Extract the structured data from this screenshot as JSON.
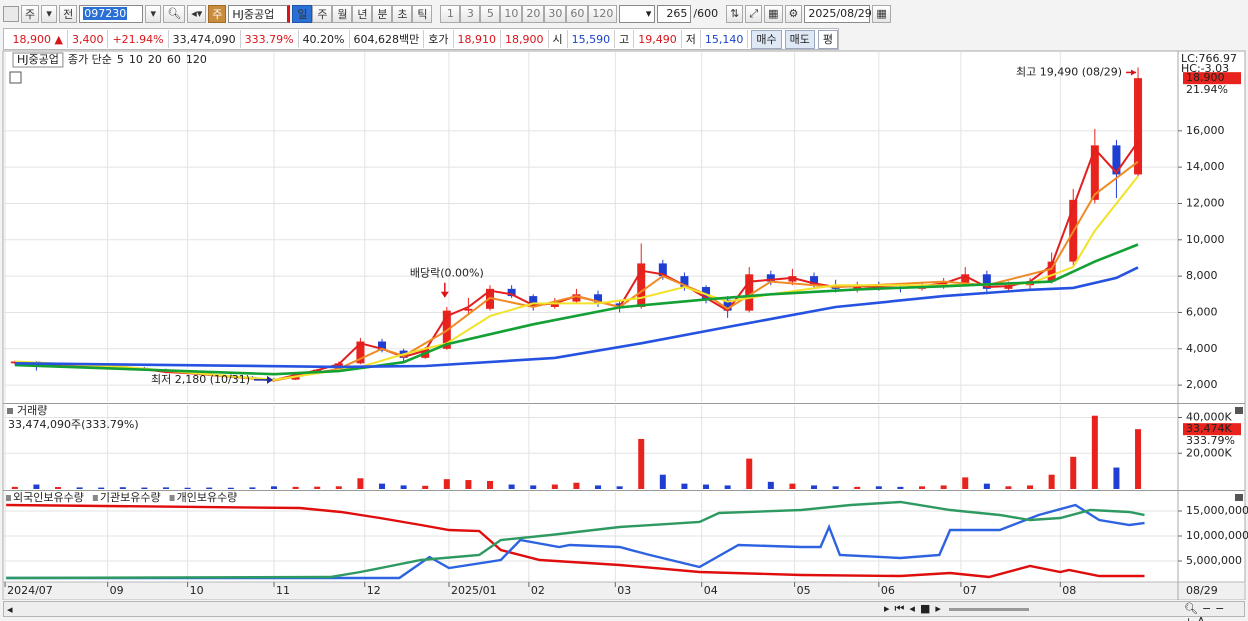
{
  "toolbar": {
    "market": "주",
    "prev": "전",
    "code": "097230",
    "name": "HJ중공업",
    "periods": [
      "일",
      "주",
      "월",
      "년",
      "분",
      "초",
      "틱"
    ],
    "intervals": [
      "1",
      "3",
      "5",
      "10",
      "20",
      "30",
      "60",
      "120"
    ],
    "count": "265",
    "max": "/600",
    "date": "2025/08/29"
  },
  "quote": {
    "price": "18,900 ▲",
    "change": "3,400",
    "rate": "+21.94%",
    "volume": "33,474,090",
    "vol_rate": "333.79%",
    "turnover": "40.20%",
    "cap": "604,628백만",
    "ask_label": "호가",
    "ask": "18,910",
    "bid": "18,900",
    "open_label": "시",
    "open": "15,590",
    "high_label": "고",
    "high": "19,490",
    "low_label": "저",
    "low": "15,140",
    "buy": "매수",
    "sell": "매도",
    "avg": "평"
  },
  "chart_data": [
    {
      "type": "candlestick",
      "title": "HJ중공업",
      "legend_label": "종가 단순",
      "x": [
        0,
        1,
        2,
        3,
        4,
        5,
        6,
        7,
        8,
        9,
        10,
        11,
        12,
        13,
        14,
        15,
        16,
        17,
        18,
        19,
        20,
        21,
        22,
        23,
        24,
        25,
        26,
        27,
        28,
        29,
        30,
        31,
        32,
        33,
        34,
        35,
        36,
        37,
        38,
        39,
        40,
        41,
        42,
        43,
        44,
        45,
        46,
        47,
        48,
        49,
        50,
        51,
        52
      ],
      "open": [
        3200,
        3300,
        3000,
        3100,
        3050,
        3000,
        2950,
        2850,
        2700,
        2650,
        2550,
        2450,
        2350,
        2300,
        2650,
        2850,
        3200,
        4400,
        3900,
        3500,
        4000,
        6100,
        6200,
        7300,
        6900,
        6300,
        6600,
        7000,
        6500,
        6300,
        8700,
        8000,
        7400,
        6700,
        6100,
        8100,
        7700,
        8000,
        7500,
        7300,
        7500,
        7400,
        7300,
        7500,
        7600,
        8100,
        7300,
        7500,
        7700,
        8800,
        12200,
        15200,
        13600
      ],
      "high": [
        3350,
        3320,
        3150,
        3150,
        3100,
        3050,
        3000,
        2900,
        2800,
        2700,
        2600,
        2500,
        2400,
        2700,
        2900,
        3300,
        4600,
        4550,
        4000,
        4100,
        6300,
        6800,
        7500,
        7500,
        7000,
        6800,
        7300,
        7200,
        6700,
        9800,
        8900,
        8200,
        7500,
        6900,
        8500,
        8300,
        8400,
        8200,
        7800,
        7700,
        7700,
        7600,
        7700,
        7900,
        8500,
        8300,
        7700,
        7900,
        9300,
        12800,
        16100,
        15500,
        19490
      ],
      "low": [
        3150,
        2800,
        2950,
        2980,
        2950,
        2900,
        2800,
        2650,
        2600,
        2500,
        2400,
        2300,
        2180,
        2280,
        2600,
        2800,
        3150,
        3800,
        3300,
        3450,
        3950,
        5900,
        6100,
        6800,
        6100,
        6200,
        6500,
        6300,
        6000,
        6200,
        7800,
        7200,
        6500,
        5700,
        6000,
        7500,
        7500,
        7300,
        7100,
        7100,
        7200,
        7100,
        7200,
        7300,
        7500,
        7000,
        7100,
        7300,
        7600,
        8600,
        12000,
        12300,
        13500
      ],
      "close": [
        3300,
        3000,
        3100,
        3050,
        3000,
        2950,
        2850,
        2700,
        2650,
        2550,
        2450,
        2350,
        2300,
        2650,
        2850,
        3200,
        4400,
        3900,
        3500,
        4000,
        6100,
        6200,
        7300,
        6900,
        6300,
        6600,
        7000,
        6500,
        6300,
        8700,
        8000,
        7400,
        6700,
        6100,
        8100,
        7700,
        8000,
        7500,
        7300,
        7500,
        7400,
        7300,
        7500,
        7600,
        8100,
        7300,
        7500,
        7700,
        8800,
        12200,
        15200,
        13600,
        18900
      ],
      "up_color": "#e8221c",
      "down_color": "#1f3fd2",
      "ma_series": [
        {
          "name": "5",
          "color": "#e31e1e",
          "x": [
            0,
            1,
            2,
            3,
            4,
            5,
            6,
            7,
            8,
            9,
            10,
            11,
            12,
            13,
            14,
            15,
            16,
            17,
            18,
            19,
            20,
            21,
            22,
            23,
            24,
            25,
            26,
            27,
            28,
            29,
            30,
            31,
            32,
            33,
            34,
            35,
            36,
            37,
            38,
            39,
            40,
            41,
            42,
            43,
            44,
            45,
            46,
            47,
            48,
            49,
            50,
            51,
            52
          ],
          "values": [
            3250,
            3050,
            3080,
            3050,
            3000,
            2960,
            2870,
            2720,
            2660,
            2560,
            2470,
            2370,
            2280,
            2550,
            2820,
            3150,
            4300,
            4000,
            3550,
            3900,
            5800,
            6300,
            7200,
            7000,
            6400,
            6500,
            6900,
            6600,
            6300,
            8300,
            8100,
            7500,
            6800,
            6100,
            7700,
            7800,
            7900,
            7600,
            7400,
            7450,
            7400,
            7350,
            7450,
            7600,
            8000,
            7400,
            7450,
            7700,
            8600,
            11800,
            15000,
            13700,
            15400
          ]
        },
        {
          "name": "10",
          "color": "#f08a24",
          "x": [
            0,
            5,
            12,
            15,
            17,
            18,
            20,
            22,
            24,
            26,
            28,
            30,
            32,
            33,
            35,
            38,
            43,
            45,
            48,
            50,
            52
          ],
          "values": [
            3250,
            3000,
            2250,
            2900,
            4000,
            3600,
            5000,
            6800,
            6300,
            6900,
            6300,
            8000,
            7000,
            6200,
            7700,
            7400,
            7700,
            7500,
            8400,
            12500,
            14300
          ]
        },
        {
          "name": "20",
          "color": "#f2e22a",
          "x": [
            0,
            5,
            12,
            16,
            18,
            20,
            22,
            24,
            27,
            29,
            31,
            33,
            35,
            38,
            43,
            47,
            49,
            50,
            52
          ],
          "values": [
            3300,
            3000,
            2300,
            3000,
            3700,
            4300,
            5800,
            6500,
            6500,
            6800,
            7400,
            6600,
            7000,
            7500,
            7500,
            7600,
            8500,
            10500,
            13500
          ]
        },
        {
          "name": "60",
          "color": "#13a035",
          "x": [
            0,
            12,
            15,
            18,
            20,
            24,
            28,
            32,
            35,
            39,
            43,
            48,
            50,
            52
          ],
          "values": [
            3100,
            2600,
            2770,
            3260,
            4250,
            5350,
            6280,
            6720,
            7000,
            7270,
            7440,
            7700,
            8800,
            9740
          ]
        },
        {
          "name": "120",
          "color": "#2552e0",
          "x": [
            0,
            15,
            19,
            25,
            29,
            33,
            38,
            43,
            47,
            49,
            51,
            52
          ],
          "values": [
            3200,
            3000,
            3050,
            3500,
            4300,
            5200,
            6300,
            6900,
            7250,
            7350,
            7900,
            8480
          ]
        }
      ],
      "xlim": [
        -0.5,
        53.85
      ],
      "xticks": [
        {
          "value": -0.45,
          "label": "2024/07"
        },
        {
          "value": 4.3,
          "label": "09"
        },
        {
          "value": 8,
          "label": "10"
        },
        {
          "value": 12,
          "label": "11"
        },
        {
          "value": 16.2,
          "label": "12"
        },
        {
          "value": 20.1,
          "label": "2025/01"
        },
        {
          "value": 23.8,
          "label": "02"
        },
        {
          "value": 27.8,
          "label": "03"
        },
        {
          "value": 31.8,
          "label": "04"
        },
        {
          "value": 36.1,
          "label": "05"
        },
        {
          "value": 40,
          "label": "06"
        },
        {
          "value": 43.8,
          "label": "07"
        },
        {
          "value": 48.4,
          "label": "08"
        }
      ],
      "x_end_label": "08/29",
      "ylim": [
        1070,
        20340
      ],
      "yticks": [
        {
          "value": 2000,
          "label": "2,000"
        },
        {
          "value": 4000,
          "label": "4,000"
        },
        {
          "value": 6000,
          "label": "6,000"
        },
        {
          "value": 8000,
          "label": "8,000"
        },
        {
          "value": 10000,
          "label": "10,000"
        },
        {
          "value": 12000,
          "label": "12,000"
        },
        {
          "value": 14000,
          "label": "14,000"
        },
        {
          "value": 16000,
          "label": "16,000"
        }
      ],
      "grid": true,
      "annotations": [
        {
          "text": "최고 19,490 (08/29)",
          "x": 52,
          "y": 19490
        },
        {
          "text": "최저 2,180 (10/31)",
          "x": 12,
          "y": 2180
        },
        {
          "text": "배당락(0.00%)",
          "x": 20,
          "y": 6700
        }
      ],
      "last": {
        "value": 18900,
        "label": "18,900",
        "change": "21.94%"
      },
      "axis_notes": [
        "LC:766.97",
        "HC:-3.03"
      ]
    },
    {
      "type": "bar",
      "title": "거래량",
      "subtitle": "33,474,090주(333.79%)",
      "x": [
        0,
        1,
        2,
        3,
        4,
        5,
        6,
        7,
        8,
        9,
        10,
        11,
        12,
        13,
        14,
        15,
        16,
        17,
        18,
        19,
        20,
        21,
        22,
        23,
        24,
        25,
        26,
        27,
        28,
        29,
        30,
        31,
        32,
        33,
        34,
        35,
        36,
        37,
        38,
        39,
        40,
        41,
        42,
        43,
        44,
        45,
        46,
        47,
        48,
        49,
        50,
        51,
        52
      ],
      "values": [
        1200,
        2500,
        1100,
        900,
        800,
        1000,
        800,
        900,
        700,
        800,
        700,
        900,
        1500,
        1200,
        1300,
        1500,
        6000,
        3000,
        2000,
        1800,
        5500,
        5000,
        4500,
        2500,
        2000,
        2500,
        3500,
        2000,
        1500,
        28000,
        8000,
        3000,
        2500,
        2000,
        17000,
        4000,
        3000,
        2000,
        1500,
        1200,
        1500,
        1200,
        1500,
        2000,
        6500,
        3000,
        1500,
        2000,
        8000,
        18000,
        41000,
        12000,
        33474
      ],
      "up_color": "#e8221c",
      "down_color": "#1f3fd2",
      "ylim": [
        0,
        47000
      ],
      "yticks": [
        {
          "value": 20000,
          "label": "20,000K"
        },
        {
          "value": 40000,
          "label": "40,000K"
        }
      ],
      "grid": true,
      "last": {
        "value": 33474,
        "label": "33,474K",
        "change": "333.79%"
      }
    },
    {
      "type": "line",
      "series": [
        {
          "name": "외국인보유수량",
          "color": "#e00d0d",
          "x": [
            -0.4,
            13.2,
            15.1,
            16.9,
            18.8,
            20.1,
            21.5,
            22.5,
            24.3,
            28,
            31.7,
            36.4,
            41,
            43.3,
            45.1,
            47,
            48.4,
            48.8,
            50.2,
            52.3
          ],
          "values": [
            16200000,
            15600000,
            14800000,
            13600000,
            12200000,
            11200000,
            11000000,
            7200000,
            5200000,
            4200000,
            2800000,
            2200000,
            2000000,
            2600000,
            1800000,
            4000000,
            2800000,
            3200000,
            2000000,
            2000000
          ]
        },
        {
          "name": "기관보유수량",
          "color": "#2d62e0",
          "x": [
            -0.4,
            17.8,
            19.2,
            20.1,
            22.5,
            23.4,
            25.2,
            25.7,
            28,
            29.4,
            31.7,
            33.5,
            36.4,
            37.3,
            37.7,
            38.2,
            41,
            42.8,
            43.3,
            45.6,
            47.4,
            49.1,
            50.2,
            51.6,
            52.3
          ],
          "values": [
            1600000,
            1600000,
            5800000,
            3600000,
            5200000,
            9200000,
            7800000,
            8200000,
            7800000,
            6200000,
            3800000,
            8200000,
            7800000,
            7800000,
            11800000,
            6200000,
            5600000,
            6200000,
            11200000,
            11200000,
            14200000,
            16200000,
            13200000,
            12200000,
            12600000
          ]
        },
        {
          "name": "개인보유수량",
          "color": "#2e9a62",
          "x": [
            -0.4,
            14.6,
            16,
            18.8,
            21.5,
            22.5,
            24.8,
            28,
            31.7,
            32.6,
            36.4,
            38.7,
            41,
            43.3,
            45.6,
            47,
            48.4,
            49.8,
            51.6,
            52.3
          ],
          "values": [
            1600000,
            1800000,
            2800000,
            5200000,
            6200000,
            9200000,
            10200000,
            11800000,
            12800000,
            14600000,
            15200000,
            16200000,
            16800000,
            15200000,
            14200000,
            13200000,
            13600000,
            15200000,
            14800000,
            14200000
          ]
        }
      ],
      "ylim": [
        1000000,
        18800000
      ],
      "yticks": [
        {
          "value": 5000000,
          "label": "5,000,000"
        },
        {
          "value": 10000000,
          "label": "10,000,000"
        },
        {
          "value": 15000000,
          "label": "15,000,000"
        }
      ],
      "grid": true
    }
  ]
}
